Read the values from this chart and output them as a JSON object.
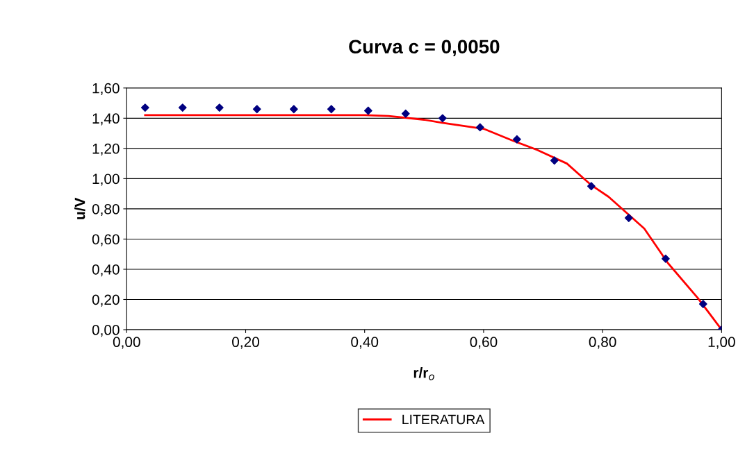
{
  "chart_data": {
    "type": "scatter",
    "title": "Curva c = 0,0050",
    "xlabel": "r/r$_{o}$",
    "ylabel": "u/V",
    "xlim": [
      0,
      1
    ],
    "xticks": [
      {
        "value": 0,
        "label": "0,00"
      },
      {
        "value": 0.2,
        "label": "0,20"
      },
      {
        "value": 0.4,
        "label": "0,40"
      },
      {
        "value": 0.6,
        "label": "0,60"
      },
      {
        "value": 0.8,
        "label": "0,80"
      },
      {
        "value": 1,
        "label": "1,00"
      }
    ],
    "ylim": [
      0,
      1.6
    ],
    "yticks": [
      {
        "value": 0,
        "label": "0,00"
      },
      {
        "value": 0.2,
        "label": "0,20"
      },
      {
        "value": 0.4,
        "label": "0,40"
      },
      {
        "value": 0.6,
        "label": "0,60"
      },
      {
        "value": 0.8,
        "label": "0,80"
      },
      {
        "value": 1.0,
        "label": "1,00"
      },
      {
        "value": 1.2,
        "label": "1,20"
      },
      {
        "value": 1.4,
        "label": "1,40"
      },
      {
        "value": 1.6,
        "label": "1,60"
      }
    ],
    "grid": "y",
    "legend": "bottom",
    "series": [
      {
        "marker": "diamond",
        "color": "#000080",
        "x": [
          0.031,
          0.094,
          0.156,
          0.219,
          0.281,
          0.344,
          0.406,
          0.469,
          0.531,
          0.594,
          0.656,
          0.719,
          0.781,
          0.844,
          0.906,
          0.969,
          1.0
        ],
        "values": [
          1.47,
          1.47,
          1.47,
          1.46,
          1.46,
          1.46,
          1.45,
          1.43,
          1.4,
          1.34,
          1.26,
          1.12,
          0.95,
          0.74,
          0.47,
          0.17,
          0.0
        ]
      },
      {
        "type": "line",
        "name": "LITERATURA",
        "color": "#ff0000",
        "line_style": "solid",
        "x": [
          0.031,
          0.2,
          0.4,
          0.44,
          0.5,
          0.53,
          0.6,
          0.65,
          0.69,
          0.74,
          0.78,
          0.81,
          0.85,
          0.87,
          0.91,
          0.96,
          1.0
        ],
        "values": [
          1.42,
          1.42,
          1.42,
          1.415,
          1.39,
          1.37,
          1.33,
          1.25,
          1.19,
          1.1,
          0.96,
          0.88,
          0.74,
          0.67,
          0.44,
          0.21,
          0.0
        ]
      }
    ]
  }
}
